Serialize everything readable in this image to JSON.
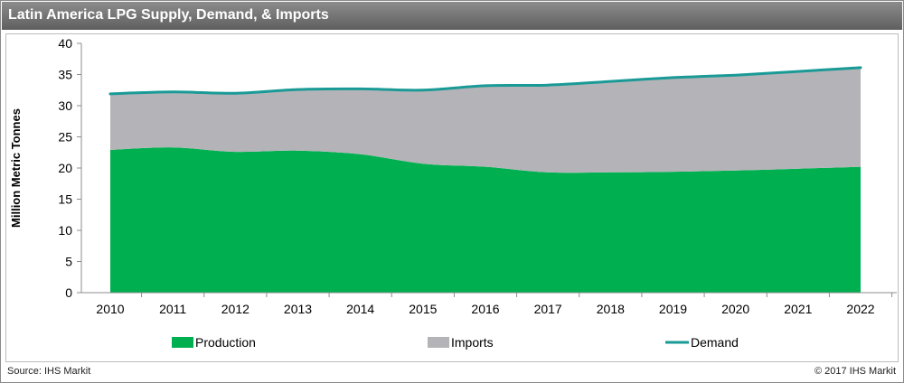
{
  "title": "Latin America LPG Supply, Demand,  & Imports",
  "footer": {
    "source": "Source: IHS Markit",
    "copyright": "© 2017 IHS Markit"
  },
  "colors": {
    "production": "#00b050",
    "imports": "#b4b4b8",
    "demand": "#1a9a96",
    "title_bar": "#6e6e6e"
  },
  "chart_data": {
    "type": "area",
    "title": "Latin America LPG Supply, Demand,  & Imports",
    "xlabel": "",
    "ylabel": "Million Metric Tonnes",
    "ylim": [
      0,
      40
    ],
    "yticks": [
      0,
      5,
      10,
      15,
      20,
      25,
      30,
      35,
      40
    ],
    "x": [
      "2010",
      "2011",
      "2012",
      "2013",
      "2014",
      "2015",
      "2016",
      "2017",
      "2018",
      "2019",
      "2020",
      "2021",
      "2022"
    ],
    "series": [
      {
        "name": "Production",
        "kind": "area",
        "values": [
          22.9,
          23.3,
          22.6,
          22.8,
          22.2,
          20.7,
          20.2,
          19.3,
          19.3,
          19.4,
          19.6,
          19.9,
          20.2
        ]
      },
      {
        "name": "Imports",
        "kind": "area",
        "values": [
          9.0,
          8.9,
          9.4,
          9.8,
          10.5,
          11.8,
          13.0,
          14.0,
          14.6,
          15.1,
          15.3,
          15.6,
          15.9
        ]
      },
      {
        "name": "Demand",
        "kind": "line",
        "values": [
          31.9,
          32.2,
          32.0,
          32.6,
          32.7,
          32.5,
          33.2,
          33.3,
          33.9,
          34.5,
          34.9,
          35.5,
          36.1
        ]
      }
    ],
    "grid": false,
    "legend": "bottom"
  }
}
